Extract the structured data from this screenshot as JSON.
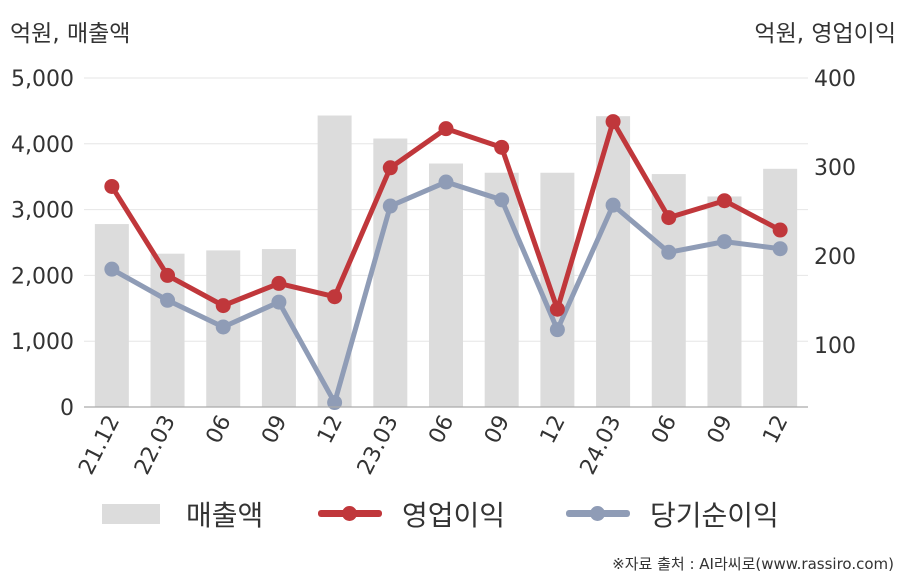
{
  "header": {
    "left_unit": "억원, 매출액",
    "right_unit": "억원, 영업이익"
  },
  "legend": {
    "items": [
      {
        "label": "매출액",
        "kind": "bar",
        "color": "#dcdcdc"
      },
      {
        "label": "영업이익",
        "kind": "line",
        "color": "#c0373b"
      },
      {
        "label": "당기순이익",
        "kind": "line",
        "color": "#8f9cb6"
      }
    ]
  },
  "credit": "※자료 출처 : AI라씨로(www.rassiro.com)",
  "chart_data": {
    "type": "bar",
    "categories": [
      "21.12",
      "22.03",
      "06",
      "09",
      "12",
      "23.03",
      "06",
      "09",
      "12",
      "24.03",
      "06",
      "09",
      "12"
    ],
    "y_left": {
      "label": "억원, 매출액",
      "ylim": [
        0,
        5000
      ],
      "ticks": [
        0,
        1000,
        2000,
        3000,
        4000,
        5000
      ],
      "tick_labels": [
        "0",
        "1,000",
        "2,000",
        "3,000",
        "4,000",
        "5,000"
      ]
    },
    "y_right": {
      "label": "억원, 영업이익",
      "ylim": [
        30,
        400
      ],
      "ticks": [
        100,
        200,
        300,
        400
      ],
      "tick_labels": [
        "100",
        "200",
        "300",
        "400"
      ]
    },
    "grid": true,
    "legend_position": "bottom",
    "series": [
      {
        "name": "매출액",
        "type": "bar",
        "axis": "left",
        "color": "#dcdcdc",
        "values": [
          2780,
          2330,
          2380,
          2400,
          4430,
          4080,
          3700,
          3560,
          3560,
          4420,
          3540,
          3200,
          3620
        ]
      },
      {
        "name": "영업이익",
        "type": "line",
        "axis": "right",
        "color": "#c0373b",
        "values": [
          278,
          178,
          144,
          169,
          154,
          299,
          343,
          322,
          140,
          351,
          243,
          262,
          229
        ]
      },
      {
        "name": "당기순이익",
        "type": "line",
        "axis": "right",
        "color": "#8f9cb6",
        "values": [
          185,
          150,
          120,
          148,
          35,
          256,
          283,
          263,
          117,
          257,
          204,
          216,
          208
        ]
      }
    ]
  }
}
